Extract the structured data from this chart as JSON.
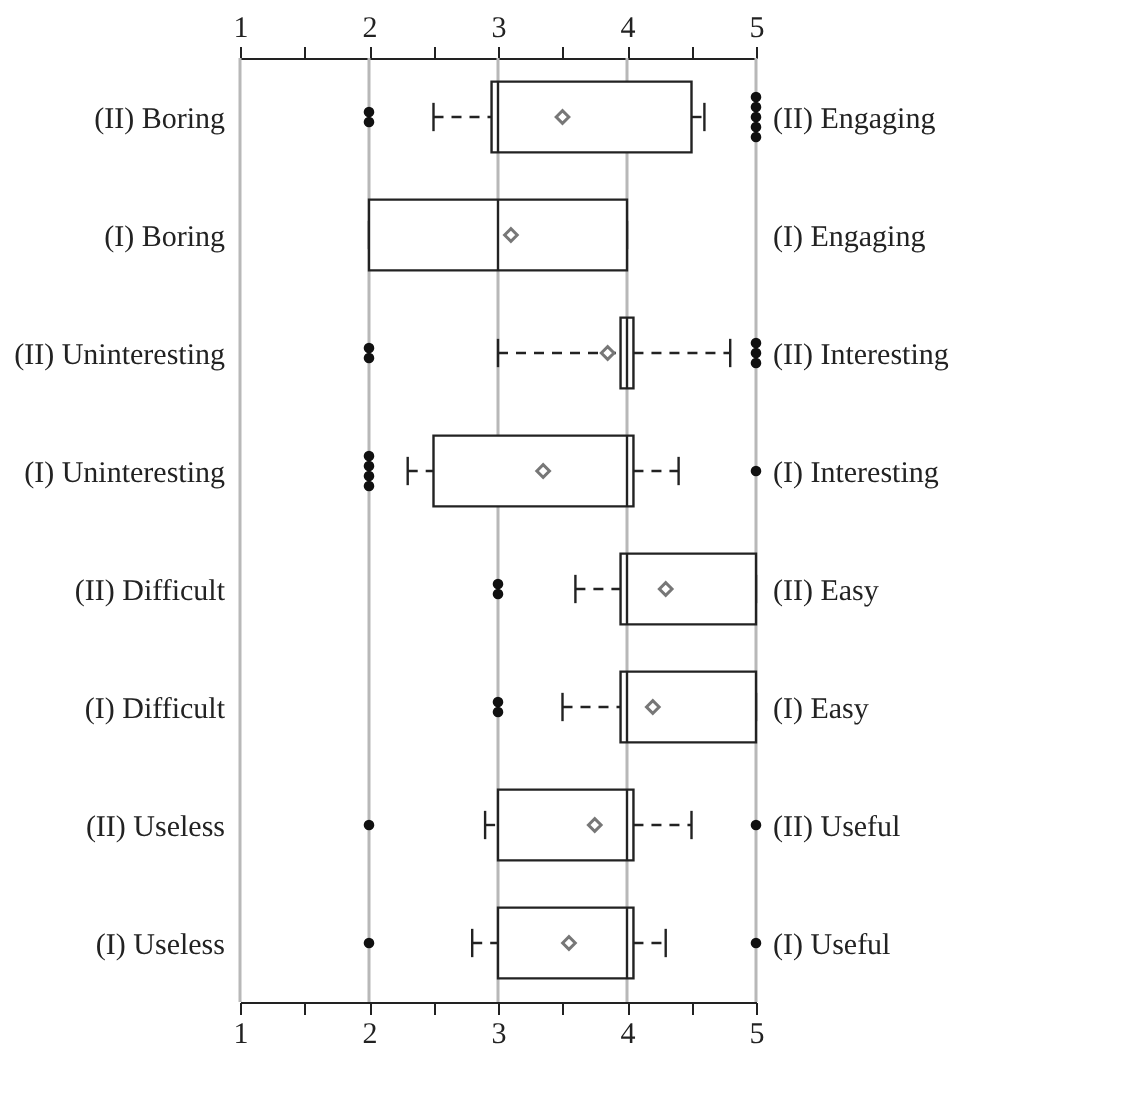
{
  "chart_data": {
    "type": "box",
    "orientation": "horizontal",
    "grid": "x",
    "categories": [
      "(II) Boring",
      "(I) Boring",
      "(II) Uninteresting",
      "(I) Uninteresting",
      "(II) Difficult",
      "(I) Difficult",
      "(II) Useless",
      "(I) Useless"
    ],
    "y2_categories": [
      "(II) Engaging",
      "(I) Engaging",
      "(II) Interesting",
      "(I) Interesting",
      "(II) Easy",
      "(I) Easy",
      "(II) Useful",
      "(I) Useful"
    ],
    "boxes": [
      {
        "low": 2.5,
        "q1": 2.95,
        "median": 3,
        "q3": 4.5,
        "high": 4.6,
        "mean": 3.5,
        "outliers": [
          2,
          2,
          5,
          5,
          5,
          5,
          5
        ]
      },
      {
        "low": 2,
        "q1": 2,
        "median": 3,
        "q3": 4,
        "high": 4,
        "mean": 3.1
      },
      {
        "low": 3,
        "q1": 3.95,
        "median": 4,
        "q3": 4.05,
        "high": 4.8,
        "mean": 3.85,
        "outliers": [
          2,
          2,
          5,
          5,
          5
        ]
      },
      {
        "low": 2.3,
        "q1": 2.5,
        "median": 4,
        "q3": 4.05,
        "high": 4.4,
        "mean": 3.35,
        "outliers": [
          2,
          2,
          2,
          2,
          5
        ]
      },
      {
        "low": 3.6,
        "q1": 3.95,
        "median": 4,
        "q3": 5,
        "high": 5,
        "mean": 4.3,
        "outliers": [
          3,
          3
        ]
      },
      {
        "low": 3.5,
        "q1": 3.95,
        "median": 4,
        "q3": 5,
        "high": 5,
        "mean": 4.2,
        "outliers": [
          3,
          3
        ]
      },
      {
        "low": 2.9,
        "q1": 3,
        "median": 4,
        "q3": 4.05,
        "high": 4.5,
        "mean": 3.75,
        "outliers": [
          2,
          5
        ]
      },
      {
        "low": 2.8,
        "q1": 3,
        "median": 4,
        "q3": 4.05,
        "high": 4.3,
        "mean": 3.55,
        "outliers": [
          2,
          5
        ]
      }
    ],
    "xlim": [
      1,
      5
    ],
    "xticks": [
      1,
      {
        "value": 1.5,
        "label": null
      },
      2,
      {
        "value": 2.5,
        "label": null
      },
      3,
      {
        "value": 3.5,
        "label": null
      },
      4,
      {
        "value": 4.5,
        "label": null
      },
      5
    ],
    "x2lim": [
      1,
      5
    ],
    "x2ticks": [
      1,
      {
        "value": 1.5,
        "label": null
      },
      2,
      {
        "value": 2.5,
        "label": null
      },
      3,
      {
        "value": 3.5,
        "label": null
      },
      4,
      {
        "value": 4.5,
        "label": null
      },
      5
    ]
  }
}
